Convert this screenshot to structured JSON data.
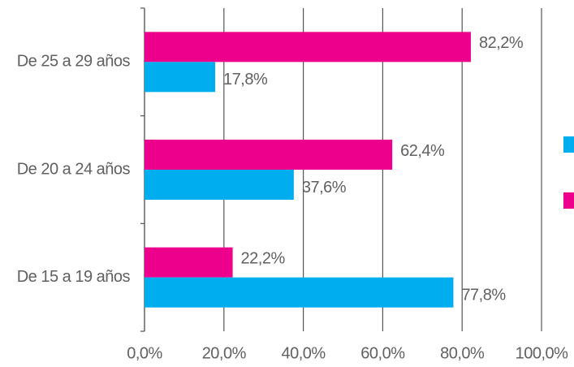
{
  "chart_data": {
    "type": "bar",
    "orientation": "horizontal",
    "categories": [
      "De 25 a 29 años",
      "De 20 a 24 años",
      "De 15 a 19 años"
    ],
    "series": [
      {
        "color": "#ec008c",
        "values": [
          82.2,
          62.4,
          22.2
        ],
        "value_labels": [
          "82,2%",
          "62,4%",
          "22,2%"
        ]
      },
      {
        "color": "#00aeef",
        "values": [
          17.8,
          37.6,
          77.8
        ],
        "value_labels": [
          "17,8%",
          "37,6%",
          "77,8%"
        ]
      }
    ],
    "xlim": [
      0,
      100
    ],
    "xticks": [
      {
        "value": 0,
        "label": "0,0%"
      },
      {
        "value": 20,
        "label": "20,0%"
      },
      {
        "value": 40,
        "label": "40,0%"
      },
      {
        "value": 60,
        "label": "60,0%"
      },
      {
        "value": 80,
        "label": "80,0%"
      },
      {
        "value": 100,
        "label": "100,0%"
      }
    ],
    "grid": true
  }
}
